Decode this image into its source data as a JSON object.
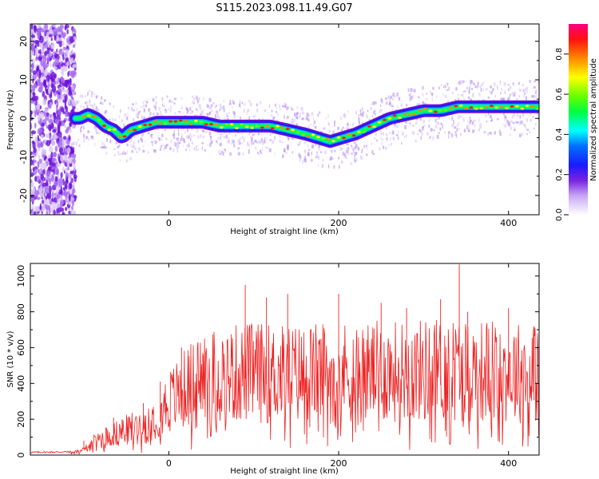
{
  "title": "S115.2023.098.11.49.G07",
  "colorbar": {
    "label": "Normalized spectral amplitude",
    "ticks": [
      "0.0",
      "0.2",
      "0.4",
      "0.6",
      "0.8"
    ],
    "range": [
      0,
      0.95
    ]
  },
  "chart_data": [
    {
      "type": "heatmap",
      "xlabel": "Height of straight line (km)",
      "ylabel": "Frequency (Hz)",
      "xlim": [
        -163,
        436
      ],
      "ylim": [
        -25,
        24.5
      ],
      "xticks": [
        0,
        200,
        400
      ],
      "yticks": [
        -20,
        -10,
        0,
        10,
        20
      ],
      "ridge": {
        "x": [
          -105,
          -95,
          -85,
          -75,
          -65,
          -55,
          -45,
          -30,
          -15,
          0,
          20,
          40,
          60,
          80,
          100,
          120,
          140,
          160,
          175,
          190,
          205,
          220,
          240,
          260,
          280,
          300,
          320,
          340,
          360,
          380,
          400,
          420,
          436
        ],
        "y": [
          0,
          1,
          0,
          -2,
          -3,
          -5,
          -3,
          -2,
          -1,
          -1,
          -1,
          -1,
          -2,
          -2,
          -2,
          -2,
          -3,
          -4,
          -5,
          -6,
          -5,
          -4,
          -2,
          0,
          1,
          2,
          2,
          3,
          3,
          3,
          3,
          3,
          3
        ]
      },
      "x_axis_label_visible": "Height of straight line (km)"
    },
    {
      "type": "line",
      "xlabel": "Height of straight line (km)",
      "ylabel": "SNR (10 * v/v)",
      "xlim": [
        -163,
        436
      ],
      "ylim": [
        0,
        1070
      ],
      "xticks": [
        0,
        200,
        400
      ],
      "yticks": [
        0,
        200,
        400,
        600,
        800,
        1000
      ],
      "series": [
        {
          "color": "#ee2222",
          "envelope": {
            "x": [
              -163,
              -115,
              -100,
              -90,
              -80,
              -70,
              -60,
              -50,
              -40,
              -30,
              -20,
              -10,
              0,
              10,
              20,
              30,
              40,
              60,
              80,
              100,
              120,
              150,
              200,
              250,
              300,
              340,
              350,
              360,
              400,
              436
            ],
            "y": [
              15,
              18,
              30,
              70,
              100,
              120,
              130,
              150,
              170,
              180,
              220,
              260,
              320,
              360,
              400,
              440,
              470,
              480,
              490,
              500,
              490,
              490,
              500,
              500,
              510,
              520,
              520,
              510,
              500,
              500
            ]
          },
          "peaks": [
            [
              -100,
              80
            ],
            [
              -65,
              210
            ],
            [
              -55,
              200
            ],
            [
              -30,
              290
            ],
            [
              -10,
              410
            ],
            [
              15,
              600
            ],
            [
              40,
              570
            ],
            [
              90,
              950
            ],
            [
              115,
              880
            ],
            [
              140,
              900
            ],
            [
              200,
              900
            ],
            [
              250,
              850
            ],
            [
              280,
              820
            ],
            [
              320,
              870
            ],
            [
              342,
              1065
            ],
            [
              352,
              800
            ],
            [
              400,
              820
            ],
            [
              430,
              680
            ]
          ]
        }
      ]
    }
  ]
}
